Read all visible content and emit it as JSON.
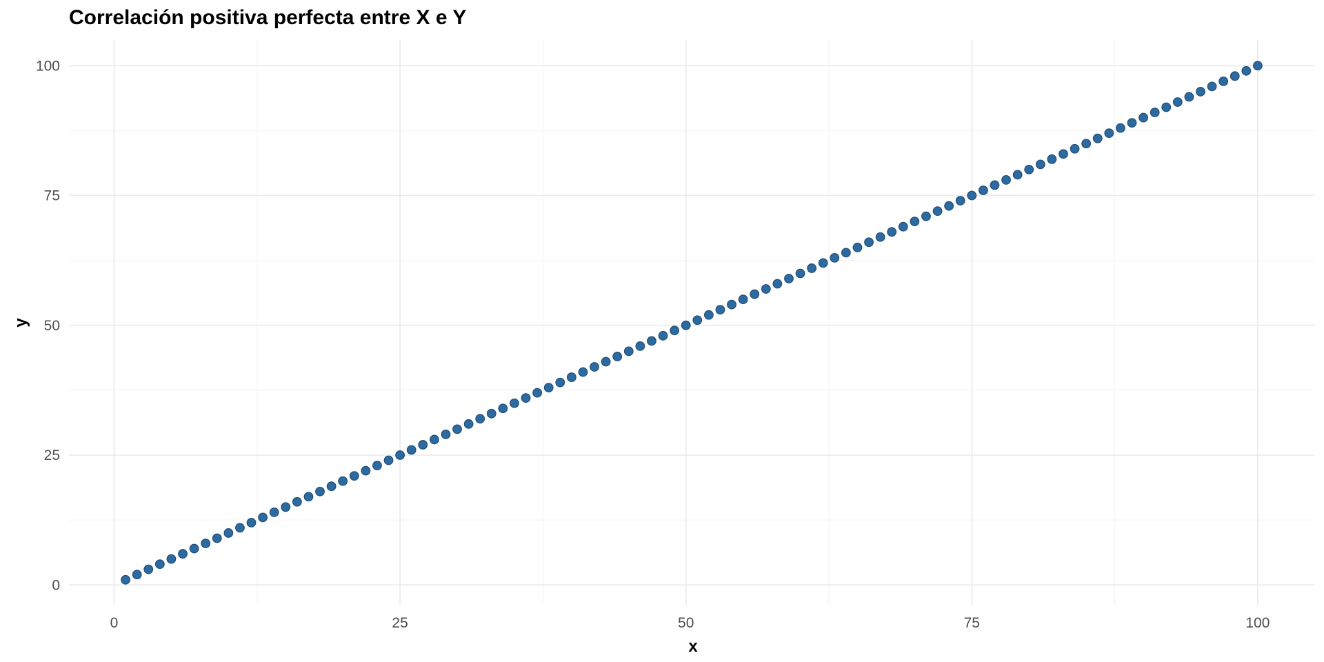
{
  "chart_data": {
    "type": "scatter",
    "title": "Correlación positiva perfecta entre X e Y",
    "xlabel": "x",
    "ylabel": "y",
    "xlim": [
      -3.95,
      104.95
    ],
    "ylim": [
      -3.95,
      104.95
    ],
    "x_ticks": [
      0,
      25,
      50,
      75,
      100
    ],
    "y_ticks": [
      0,
      25,
      50,
      75,
      100
    ],
    "x_tick_labels": [
      "0",
      "25",
      "50",
      "75",
      "100"
    ],
    "y_tick_labels": [
      "0",
      "25",
      "50",
      "75",
      "100"
    ],
    "grid": true,
    "legend": "none",
    "point_color": "#2c6aa0",
    "point_outline": "#1f4e79",
    "series": [
      {
        "x": [
          1,
          2,
          3,
          4,
          5,
          6,
          7,
          8,
          9,
          10,
          11,
          12,
          13,
          14,
          15,
          16,
          17,
          18,
          19,
          20,
          21,
          22,
          23,
          24,
          25,
          26,
          27,
          28,
          29,
          30,
          31,
          32,
          33,
          34,
          35,
          36,
          37,
          38,
          39,
          40,
          41,
          42,
          43,
          44,
          45,
          46,
          47,
          48,
          49,
          50,
          51,
          52,
          53,
          54,
          55,
          56,
          57,
          58,
          59,
          60,
          61,
          62,
          63,
          64,
          65,
          66,
          67,
          68,
          69,
          70,
          71,
          72,
          73,
          74,
          75,
          76,
          77,
          78,
          79,
          80,
          81,
          82,
          83,
          84,
          85,
          86,
          87,
          88,
          89,
          90,
          91,
          92,
          93,
          94,
          95,
          96,
          97,
          98,
          99,
          100
        ],
        "y": [
          1,
          2,
          3,
          4,
          5,
          6,
          7,
          8,
          9,
          10,
          11,
          12,
          13,
          14,
          15,
          16,
          17,
          18,
          19,
          20,
          21,
          22,
          23,
          24,
          25,
          26,
          27,
          28,
          29,
          30,
          31,
          32,
          33,
          34,
          35,
          36,
          37,
          38,
          39,
          40,
          41,
          42,
          43,
          44,
          45,
          46,
          47,
          48,
          49,
          50,
          51,
          52,
          53,
          54,
          55,
          56,
          57,
          58,
          59,
          60,
          61,
          62,
          63,
          64,
          65,
          66,
          67,
          68,
          69,
          70,
          71,
          72,
          73,
          74,
          75,
          76,
          77,
          78,
          79,
          80,
          81,
          82,
          83,
          84,
          85,
          86,
          87,
          88,
          89,
          90,
          91,
          92,
          93,
          94,
          95,
          96,
          97,
          98,
          99,
          100
        ]
      }
    ]
  }
}
